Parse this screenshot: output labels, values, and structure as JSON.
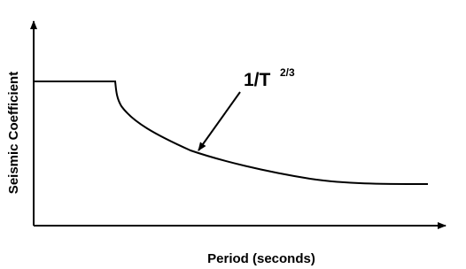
{
  "axes": {
    "y_label": "Seismic Coefficient",
    "x_label": "Period (seconds)"
  },
  "annotation": {
    "text": "1/T",
    "superscript": "2/3"
  }
}
